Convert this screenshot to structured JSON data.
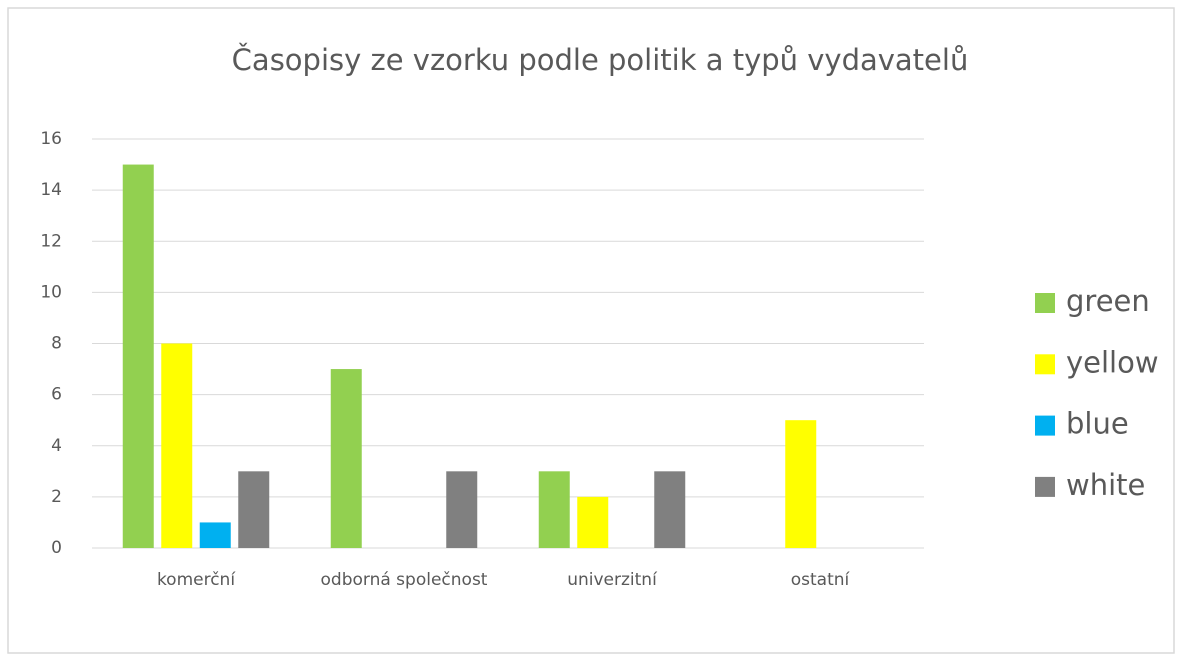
{
  "chart_data": {
    "type": "bar",
    "title": "Časopisy ze vzorku podle politik a typů vydavatelů",
    "categories": [
      "komerční",
      "odborná společnost",
      "univerzitní",
      "ostatní"
    ],
    "series": [
      {
        "name": "green",
        "color": "#92d050",
        "values": [
          15,
          7,
          3,
          0
        ]
      },
      {
        "name": "yellow",
        "color": "#ffff00",
        "values": [
          8,
          0,
          2,
          5
        ]
      },
      {
        "name": "blue",
        "color": "#00b0f0",
        "values": [
          1,
          0,
          0,
          0
        ]
      },
      {
        "name": "white",
        "color": "#808080",
        "values": [
          3,
          3,
          3,
          0
        ]
      }
    ],
    "ylim": [
      0,
      16
    ],
    "yticks": [
      0,
      2,
      4,
      6,
      8,
      10,
      12,
      14,
      16
    ],
    "grid": true,
    "legend": "right"
  }
}
